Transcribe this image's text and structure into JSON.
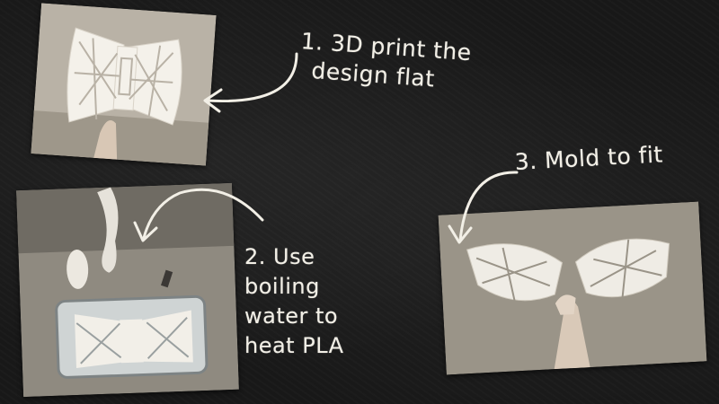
{
  "steps": {
    "step1_line1": "1. 3D print the",
    "step1_line2": "design flat",
    "step2_line1": "2. Use",
    "step2_line2": "boiling",
    "step2_line3": "water to",
    "step2_line4": "heat PLA",
    "step3": "3.  Mold to fit"
  },
  "colors": {
    "chalkboard": "#181818",
    "chalk": "#f2efe6"
  }
}
